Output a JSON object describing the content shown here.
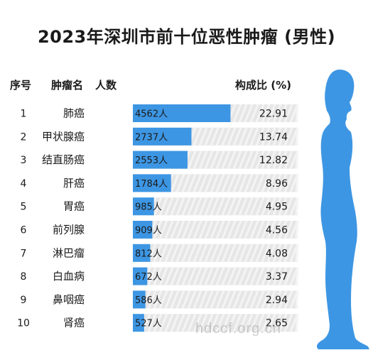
{
  "title": "2023年深圳市前十位恶性肿瘤 (男性)",
  "headers": {
    "rank": "序号",
    "name": "肿瘤名",
    "count": "人数",
    "pct": "构成比 (%)"
  },
  "unit": "人",
  "watermark": "hdccf.org.cn",
  "colors": {
    "bar": "#3d96e3",
    "track": "#e6e6e6",
    "stripe": "#f4f4f4",
    "body": "#3d96e3"
  },
  "chart_data": {
    "type": "bar",
    "title": "2023年深圳市前十位恶性肿瘤 (男性)",
    "orientation": "horizontal",
    "categories": [
      "肺癌",
      "甲状腺癌",
      "结直肠癌",
      "肝癌",
      "胃癌",
      "前列腺",
      "淋巴瘤",
      "白血病",
      "鼻咽癌",
      "肾癌"
    ],
    "ranks": [
      "1",
      "2",
      "3",
      "4",
      "5",
      "6",
      "7",
      "8",
      "9",
      "10"
    ],
    "counts": [
      4562,
      2737,
      2553,
      1784,
      985,
      909,
      812,
      672,
      586,
      527
    ],
    "percentages": [
      "22.91",
      "13.74",
      "12.82",
      "8.96",
      "4.95",
      "4.56",
      "4.08",
      "3.37",
      "2.94",
      "2.65"
    ],
    "xlim": [
      0,
      7700
    ]
  }
}
